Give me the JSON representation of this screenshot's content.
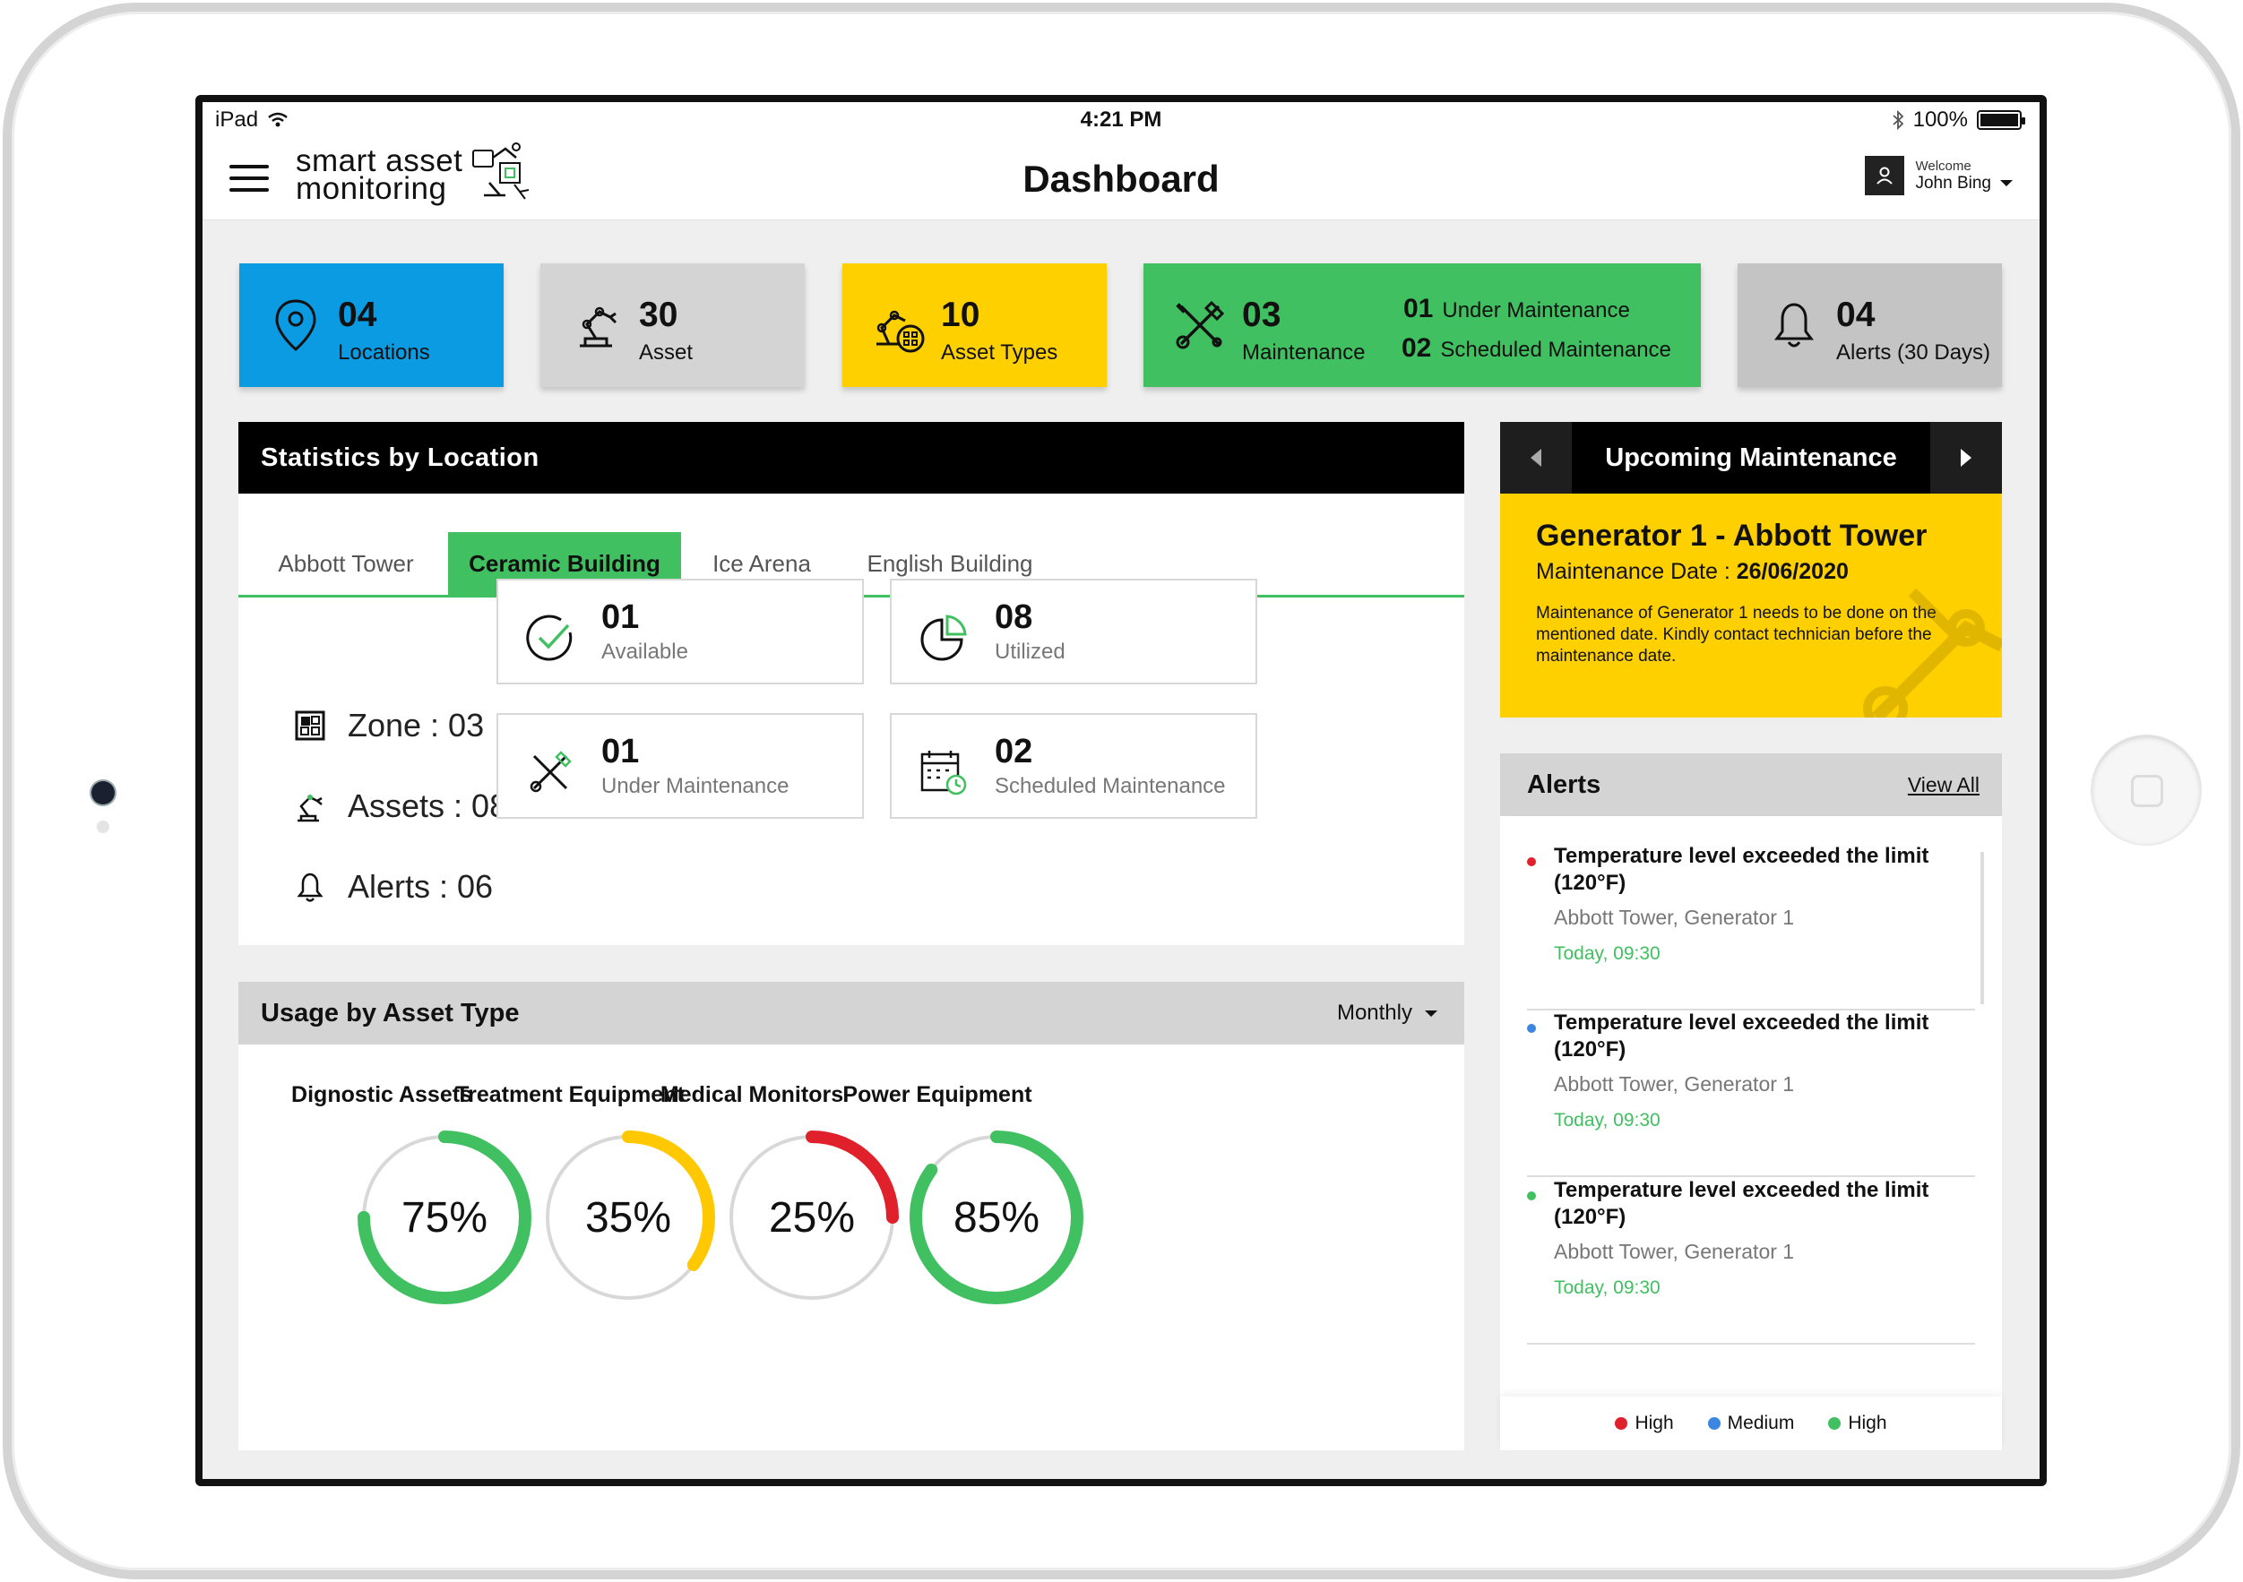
{
  "status_bar": {
    "device": "iPad",
    "time": "4:21 PM",
    "battery": "100%"
  },
  "header": {
    "brand_line1": "smart asset",
    "brand_line2": "monitoring",
    "title": "Dashboard",
    "welcome": "Welcome",
    "user_name": "John Bing"
  },
  "cards": {
    "locations": {
      "num": "04",
      "label": "Locations"
    },
    "asset": {
      "num": "30",
      "label": "Asset"
    },
    "asset_types": {
      "num": "10",
      "label": "Asset Types"
    },
    "maintenance": {
      "num": "03",
      "label": "Maintenance",
      "under_num": "01",
      "under_label": "Under Maintenance",
      "sched_num": "02",
      "sched_label": "Scheduled Maintenance"
    },
    "alerts": {
      "num": "04",
      "label": "Alerts (30 Days)"
    }
  },
  "statistics": {
    "title": "Statistics by Location",
    "tabs": [
      "Abbott Tower",
      "Ceramic Building",
      "Ice Arena",
      "English Building"
    ],
    "active_tab": "Ceramic Building",
    "zone": "Zone : 03",
    "assets": "Assets : 08",
    "alerts": "Alerts : 06",
    "available": {
      "num": "01",
      "label": "Available"
    },
    "utilized": {
      "num": "08",
      "label": "Utilized"
    },
    "under_maintenance": {
      "num": "01",
      "label": "Under Maintenance"
    },
    "scheduled_maintenance": {
      "num": "02",
      "label": "Scheduled Maintenance"
    }
  },
  "usage": {
    "title": "Usage by Asset Type",
    "period": "Monthly",
    "gauges": [
      {
        "name": "Dignostic Assets",
        "label": "75%",
        "value": 75,
        "color": "#40c060"
      },
      {
        "name": "Treatment Equipment",
        "label": "35%",
        "value": 35,
        "color": "#ffc800"
      },
      {
        "name": "Medical Monitors",
        "label": "25%",
        "value": 25,
        "color": "#e0202a"
      },
      {
        "name": "Power Equipment",
        "label": "85%",
        "value": 85,
        "color": "#40c060"
      }
    ]
  },
  "upcoming": {
    "title": "Upcoming Maintenance",
    "item_title": "Generator 1 - Abbott Tower",
    "date_label": "Maintenance Date :",
    "date": "26/06/2020",
    "description": "Maintenance of Generator 1 needs to be done on the mentioned date. Kindly contact technician before the maintenance date."
  },
  "alerts_panel": {
    "title": "Alerts",
    "view_all": "View All",
    "items": [
      {
        "message": "Temperature level exceeded the limit (120°F)",
        "location": "Abbott Tower, Generator 1",
        "time": "Today, 09:30",
        "color": "#e0202a"
      },
      {
        "message": "Temperature level exceeded the limit (120°F)",
        "location": "Abbott Tower, Generator 1",
        "time": "Today, 09:30",
        "color": "#3a86e0"
      },
      {
        "message": "Temperature level exceeded the limit (120°F)",
        "location": "Abbott Tower, Generator 1",
        "time": "Today, 09:30",
        "color": "#40c060"
      }
    ],
    "legend": [
      {
        "label": "High",
        "color": "#e0202a"
      },
      {
        "label": "Medium",
        "color": "#3a86e0"
      },
      {
        "label": "High",
        "color": "#40c060"
      }
    ]
  }
}
